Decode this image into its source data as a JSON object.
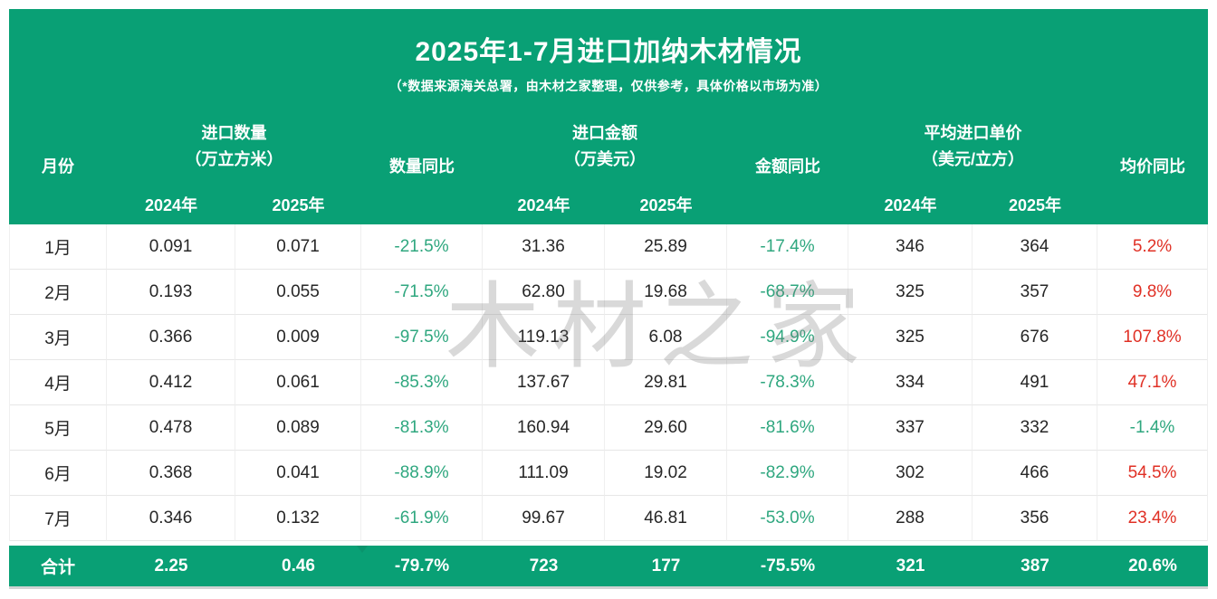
{
  "header": {
    "title": "2025年1-7月进口加纳木材情况",
    "subtitle": "（*数据来源海关总署，由木材之家整理，仅供参考，具体价格以市场为准）"
  },
  "watermark": "木材之家",
  "colors": {
    "panel_green": "#09a075",
    "yoy_negative_green": "#2fa77f",
    "yoy_positive_red": "#e03025"
  },
  "table": {
    "col_month": "月份",
    "group_quantity": {
      "label": "进口数量",
      "unit": "（万立方米）"
    },
    "col_quantity_yoy": "数量同比",
    "group_amount": {
      "label": "进口金额",
      "unit": "（万美元）"
    },
    "col_amount_yoy": "金额同比",
    "group_price": {
      "label": "平均进口单价",
      "unit": "（美元/立方）"
    },
    "col_price_yoy": "均价同比",
    "year_2024": "2024年",
    "year_2025": "2025年",
    "rows": [
      {
        "month": "1月",
        "qty_2024": "0.091",
        "qty_2025": "0.071",
        "qty_yoy": "-21.5%",
        "amt_2024": "31.36",
        "amt_2025": "25.89",
        "amt_yoy": "-17.4%",
        "price_2024": "346",
        "price_2025": "364",
        "price_yoy": "5.2%"
      },
      {
        "month": "2月",
        "qty_2024": "0.193",
        "qty_2025": "0.055",
        "qty_yoy": "-71.5%",
        "amt_2024": "62.80",
        "amt_2025": "19.68",
        "amt_yoy": "-68.7%",
        "price_2024": "325",
        "price_2025": "357",
        "price_yoy": "9.8%"
      },
      {
        "month": "3月",
        "qty_2024": "0.366",
        "qty_2025": "0.009",
        "qty_yoy": "-97.5%",
        "amt_2024": "119.13",
        "amt_2025": "6.08",
        "amt_yoy": "-94.9%",
        "price_2024": "325",
        "price_2025": "676",
        "price_yoy": "107.8%"
      },
      {
        "month": "4月",
        "qty_2024": "0.412",
        "qty_2025": "0.061",
        "qty_yoy": "-85.3%",
        "amt_2024": "137.67",
        "amt_2025": "29.81",
        "amt_yoy": "-78.3%",
        "price_2024": "334",
        "price_2025": "491",
        "price_yoy": "47.1%"
      },
      {
        "month": "5月",
        "qty_2024": "0.478",
        "qty_2025": "0.089",
        "qty_yoy": "-81.3%",
        "amt_2024": "160.94",
        "amt_2025": "29.60",
        "amt_yoy": "-81.6%",
        "price_2024": "337",
        "price_2025": "332",
        "price_yoy": "-1.4%"
      },
      {
        "month": "6月",
        "qty_2024": "0.368",
        "qty_2025": "0.041",
        "qty_yoy": "-88.9%",
        "amt_2024": "111.09",
        "amt_2025": "19.02",
        "amt_yoy": "-82.9%",
        "price_2024": "302",
        "price_2025": "466",
        "price_yoy": "54.5%"
      },
      {
        "month": "7月",
        "qty_2024": "0.346",
        "qty_2025": "0.132",
        "qty_yoy": "-61.9%",
        "amt_2024": "99.67",
        "amt_2025": "46.81",
        "amt_yoy": "-53.0%",
        "price_2024": "288",
        "price_2025": "356",
        "price_yoy": "23.4%"
      }
    ],
    "total": {
      "month": "合计",
      "qty_2024": "2.25",
      "qty_2025": "0.46",
      "qty_yoy": "-79.7%",
      "amt_2024": "723",
      "amt_2025": "177",
      "amt_yoy": "-75.5%",
      "price_2024": "321",
      "price_2025": "387",
      "price_yoy": "20.6%"
    }
  },
  "chart_data": {
    "type": "table",
    "title": "2025年1-7月进口加纳木材情况",
    "note": "（*数据来源海关总署，由木材之家整理，仅供参考，具体价格以市场为准）",
    "column_groups": [
      "月份",
      "进口数量（万立方米）",
      "数量同比",
      "进口金额（万美元）",
      "金额同比",
      "平均进口单价（美元/立方）",
      "均价同比"
    ],
    "columns": [
      "月份",
      "进口数量2024年",
      "进口数量2025年",
      "数量同比",
      "进口金额2024年",
      "进口金额2025年",
      "金额同比",
      "平均进口单价2024年",
      "平均进口单价2025年",
      "均价同比"
    ],
    "rows": [
      [
        "1月",
        0.091,
        0.071,
        "-21.5%",
        31.36,
        25.89,
        "-17.4%",
        346,
        364,
        "5.2%"
      ],
      [
        "2月",
        0.193,
        0.055,
        "-71.5%",
        62.8,
        19.68,
        "-68.7%",
        325,
        357,
        "9.8%"
      ],
      [
        "3月",
        0.366,
        0.009,
        "-97.5%",
        119.13,
        6.08,
        "-94.9%",
        325,
        676,
        "107.8%"
      ],
      [
        "4月",
        0.412,
        0.061,
        "-85.3%",
        137.67,
        29.81,
        "-78.3%",
        334,
        491,
        "47.1%"
      ],
      [
        "5月",
        0.478,
        0.089,
        "-81.3%",
        160.94,
        29.6,
        "-81.6%",
        337,
        332,
        "-1.4%"
      ],
      [
        "6月",
        0.368,
        0.041,
        "-88.9%",
        111.09,
        19.02,
        "-82.9%",
        302,
        466,
        "54.5%"
      ],
      [
        "7月",
        0.346,
        0.132,
        "-61.9%",
        99.67,
        46.81,
        "-53.0%",
        288,
        356,
        "23.4%"
      ]
    ],
    "total_row": [
      "合计",
      2.25,
      0.46,
      "-79.7%",
      723,
      177,
      "-75.5%",
      321,
      387,
      "20.6%"
    ]
  }
}
